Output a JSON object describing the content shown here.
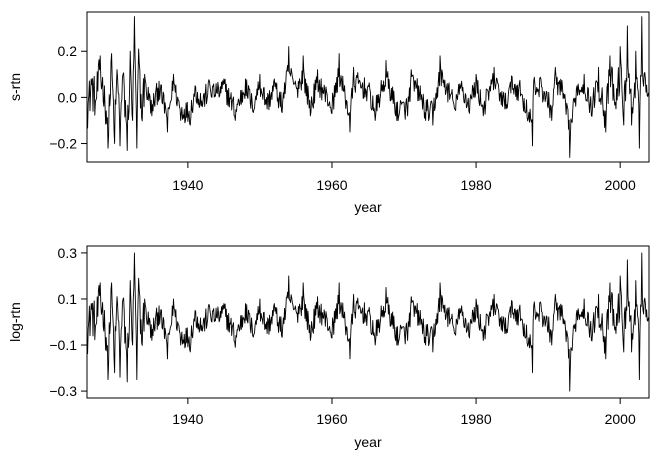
{
  "colors": {
    "series": "#000000",
    "frame": "#000000",
    "background": "#ffffff"
  },
  "chart_data": [
    {
      "type": "line",
      "title": "",
      "xlabel": "year",
      "ylabel": "s-rtn",
      "xlim": [
        1926,
        2004
      ],
      "ylim": [
        -0.28,
        0.37
      ],
      "xticks": [
        1940,
        1960,
        1980,
        2000
      ],
      "xtick_labels": [
        "1940",
        "1960",
        "1980",
        "2000"
      ],
      "yticks": [
        -0.2,
        0.0,
        0.2
      ],
      "ytick_labels": [
        "−0.2",
        "0.0",
        "0.2"
      ],
      "grid": false,
      "legend": "none",
      "series": [
        {
          "frequency": "monthly",
          "x_start": 1926.0,
          "x_end": 2003.92,
          "anchors": [
            [
              1926.0,
              -0.11
            ],
            [
              1926.6,
              0.08
            ],
            [
              1927.2,
              -0.02
            ],
            [
              1927.8,
              0.18
            ],
            [
              1928.4,
              0.05
            ],
            [
              1928.9,
              -0.22
            ],
            [
              1929.4,
              0.19
            ],
            [
              1929.8,
              -0.2
            ],
            [
              1930.2,
              0.12
            ],
            [
              1930.6,
              -0.21
            ],
            [
              1931.0,
              0.1
            ],
            [
              1931.6,
              -0.23
            ],
            [
              1932.0,
              0.2
            ],
            [
              1932.3,
              -0.1
            ],
            [
              1932.6,
              0.35
            ],
            [
              1932.9,
              -0.22
            ],
            [
              1933.2,
              0.21
            ],
            [
              1933.6,
              -0.09
            ],
            [
              1934.0,
              0.1
            ],
            [
              1935.0,
              -0.08
            ],
            [
              1936.0,
              0.07
            ],
            [
              1937.2,
              -0.15
            ],
            [
              1938.0,
              0.1
            ],
            [
              1939.0,
              -0.1
            ],
            [
              1940.3,
              -0.12
            ],
            [
              1941.0,
              0.05
            ],
            [
              1942.0,
              -0.04
            ],
            [
              1943.0,
              0.07
            ],
            [
              1944.0,
              0.02
            ],
            [
              1945.0,
              0.08
            ],
            [
              1946.6,
              -0.1
            ],
            [
              1948.0,
              0.08
            ],
            [
              1949.0,
              -0.06
            ],
            [
              1950.0,
              0.1
            ],
            [
              1951.0,
              -0.05
            ],
            [
              1952.0,
              0.08
            ],
            [
              1953.0,
              -0.06
            ],
            [
              1954.0,
              0.22
            ],
            [
              1955.0,
              0.05
            ],
            [
              1956.0,
              0.18
            ],
            [
              1957.0,
              -0.08
            ],
            [
              1958.0,
              0.12
            ],
            [
              1959.0,
              0.03
            ],
            [
              1960.0,
              -0.07
            ],
            [
              1961.0,
              0.19
            ],
            [
              1962.5,
              -0.15
            ],
            [
              1963.0,
              0.13
            ],
            [
              1965.0,
              0.05
            ],
            [
              1966.0,
              -0.1
            ],
            [
              1967.5,
              0.16
            ],
            [
              1969.0,
              -0.1
            ],
            [
              1970.5,
              -0.08
            ],
            [
              1971.0,
              0.12
            ],
            [
              1972.0,
              0.05
            ],
            [
              1973.0,
              -0.1
            ],
            [
              1974.0,
              -0.12
            ],
            [
              1975.0,
              0.18
            ],
            [
              1976.0,
              0.06
            ],
            [
              1977.0,
              -0.05
            ],
            [
              1978.0,
              0.07
            ],
            [
              1979.0,
              -0.06
            ],
            [
              1980.0,
              0.1
            ],
            [
              1981.0,
              -0.08
            ],
            [
              1982.5,
              0.13
            ],
            [
              1984.0,
              -0.05
            ],
            [
              1985.0,
              0.09
            ],
            [
              1986.0,
              0.06
            ],
            [
              1987.8,
              -0.21
            ],
            [
              1988.0,
              0.07
            ],
            [
              1989.0,
              0.08
            ],
            [
              1990.5,
              -0.1
            ],
            [
              1991.0,
              0.13
            ],
            [
              1992.0,
              0.04
            ],
            [
              1993.0,
              -0.26
            ],
            [
              1994.0,
              0.05
            ],
            [
              1995.0,
              0.1
            ],
            [
              1996.0,
              -0.08
            ],
            [
              1997.0,
              0.13
            ],
            [
              1998.0,
              -0.15
            ],
            [
              1998.6,
              0.18
            ],
            [
              1999.4,
              -0.05
            ],
            [
              2000.0,
              0.22
            ],
            [
              2000.5,
              -0.12
            ],
            [
              2001.0,
              0.31
            ],
            [
              2001.6,
              -0.12
            ],
            [
              2002.2,
              0.2
            ],
            [
              2002.7,
              -0.22
            ],
            [
              2003.0,
              0.35
            ],
            [
              2003.5,
              0.08
            ],
            [
              2003.92,
              0.02
            ]
          ]
        }
      ]
    },
    {
      "type": "line",
      "title": "",
      "xlabel": "year",
      "ylabel": "log-rtn",
      "xlim": [
        1926,
        2004
      ],
      "ylim": [
        -0.33,
        0.33
      ],
      "xticks": [
        1940,
        1960,
        1980,
        2000
      ],
      "xtick_labels": [
        "1940",
        "1960",
        "1980",
        "2000"
      ],
      "yticks": [
        -0.3,
        -0.1,
        0.1,
        0.3
      ],
      "ytick_labels": [
        "−0.3",
        "−0.1",
        "0.1",
        "0.3"
      ],
      "grid": false,
      "legend": "none",
      "series": [
        {
          "frequency": "monthly",
          "x_start": 1926.0,
          "x_end": 2003.92,
          "anchors": [
            [
              1926.0,
              -0.12
            ],
            [
              1926.6,
              0.08
            ],
            [
              1927.2,
              -0.02
            ],
            [
              1927.8,
              0.17
            ],
            [
              1928.4,
              0.05
            ],
            [
              1928.9,
              -0.25
            ],
            [
              1929.4,
              0.17
            ],
            [
              1929.8,
              -0.22
            ],
            [
              1930.2,
              0.11
            ],
            [
              1930.6,
              -0.24
            ],
            [
              1931.0,
              0.1
            ],
            [
              1931.6,
              -0.26
            ],
            [
              1932.0,
              0.18
            ],
            [
              1932.3,
              -0.1
            ],
            [
              1932.6,
              0.3
            ],
            [
              1932.9,
              -0.25
            ],
            [
              1933.2,
              0.19
            ],
            [
              1933.6,
              -0.09
            ],
            [
              1934.0,
              0.1
            ],
            [
              1935.0,
              -0.08
            ],
            [
              1936.0,
              0.07
            ],
            [
              1937.2,
              -0.16
            ],
            [
              1938.0,
              0.1
            ],
            [
              1939.0,
              -0.1
            ],
            [
              1940.3,
              -0.13
            ],
            [
              1941.0,
              0.05
            ],
            [
              1942.0,
              -0.04
            ],
            [
              1943.0,
              0.07
            ],
            [
              1944.0,
              0.02
            ],
            [
              1945.0,
              0.08
            ],
            [
              1946.6,
              -0.11
            ],
            [
              1948.0,
              0.08
            ],
            [
              1949.0,
              -0.06
            ],
            [
              1950.0,
              0.1
            ],
            [
              1951.0,
              -0.05
            ],
            [
              1952.0,
              0.08
            ],
            [
              1953.0,
              -0.06
            ],
            [
              1954.0,
              0.2
            ],
            [
              1955.0,
              0.05
            ],
            [
              1956.0,
              0.17
            ],
            [
              1957.0,
              -0.08
            ],
            [
              1958.0,
              0.11
            ],
            [
              1959.0,
              0.03
            ],
            [
              1960.0,
              -0.07
            ],
            [
              1961.0,
              0.17
            ],
            [
              1962.5,
              -0.16
            ],
            [
              1963.0,
              0.12
            ],
            [
              1965.0,
              0.05
            ],
            [
              1966.0,
              -0.1
            ],
            [
              1967.5,
              0.15
            ],
            [
              1969.0,
              -0.1
            ],
            [
              1970.5,
              -0.08
            ],
            [
              1971.0,
              0.11
            ],
            [
              1972.0,
              0.05
            ],
            [
              1973.0,
              -0.1
            ],
            [
              1974.0,
              -0.13
            ],
            [
              1975.0,
              0.17
            ],
            [
              1976.0,
              0.06
            ],
            [
              1977.0,
              -0.05
            ],
            [
              1978.0,
              0.07
            ],
            [
              1979.0,
              -0.06
            ],
            [
              1980.0,
              0.1
            ],
            [
              1981.0,
              -0.08
            ],
            [
              1982.5,
              0.12
            ],
            [
              1984.0,
              -0.05
            ],
            [
              1985.0,
              0.09
            ],
            [
              1986.0,
              0.06
            ],
            [
              1987.8,
              -0.22
            ],
            [
              1988.0,
              0.07
            ],
            [
              1989.0,
              0.08
            ],
            [
              1990.5,
              -0.1
            ],
            [
              1991.0,
              0.12
            ],
            [
              1992.0,
              0.04
            ],
            [
              1993.0,
              -0.3
            ],
            [
              1994.0,
              0.05
            ],
            [
              1995.0,
              0.1
            ],
            [
              1996.0,
              -0.08
            ],
            [
              1997.0,
              0.12
            ],
            [
              1998.0,
              -0.16
            ],
            [
              1998.6,
              0.17
            ],
            [
              1999.4,
              -0.05
            ],
            [
              2000.0,
              0.2
            ],
            [
              2000.5,
              -0.13
            ],
            [
              2001.0,
              0.27
            ],
            [
              2001.6,
              -0.13
            ],
            [
              2002.2,
              0.18
            ],
            [
              2002.7,
              -0.25
            ],
            [
              2003.0,
              0.3
            ],
            [
              2003.5,
              0.08
            ],
            [
              2003.92,
              0.02
            ]
          ]
        }
      ]
    }
  ]
}
